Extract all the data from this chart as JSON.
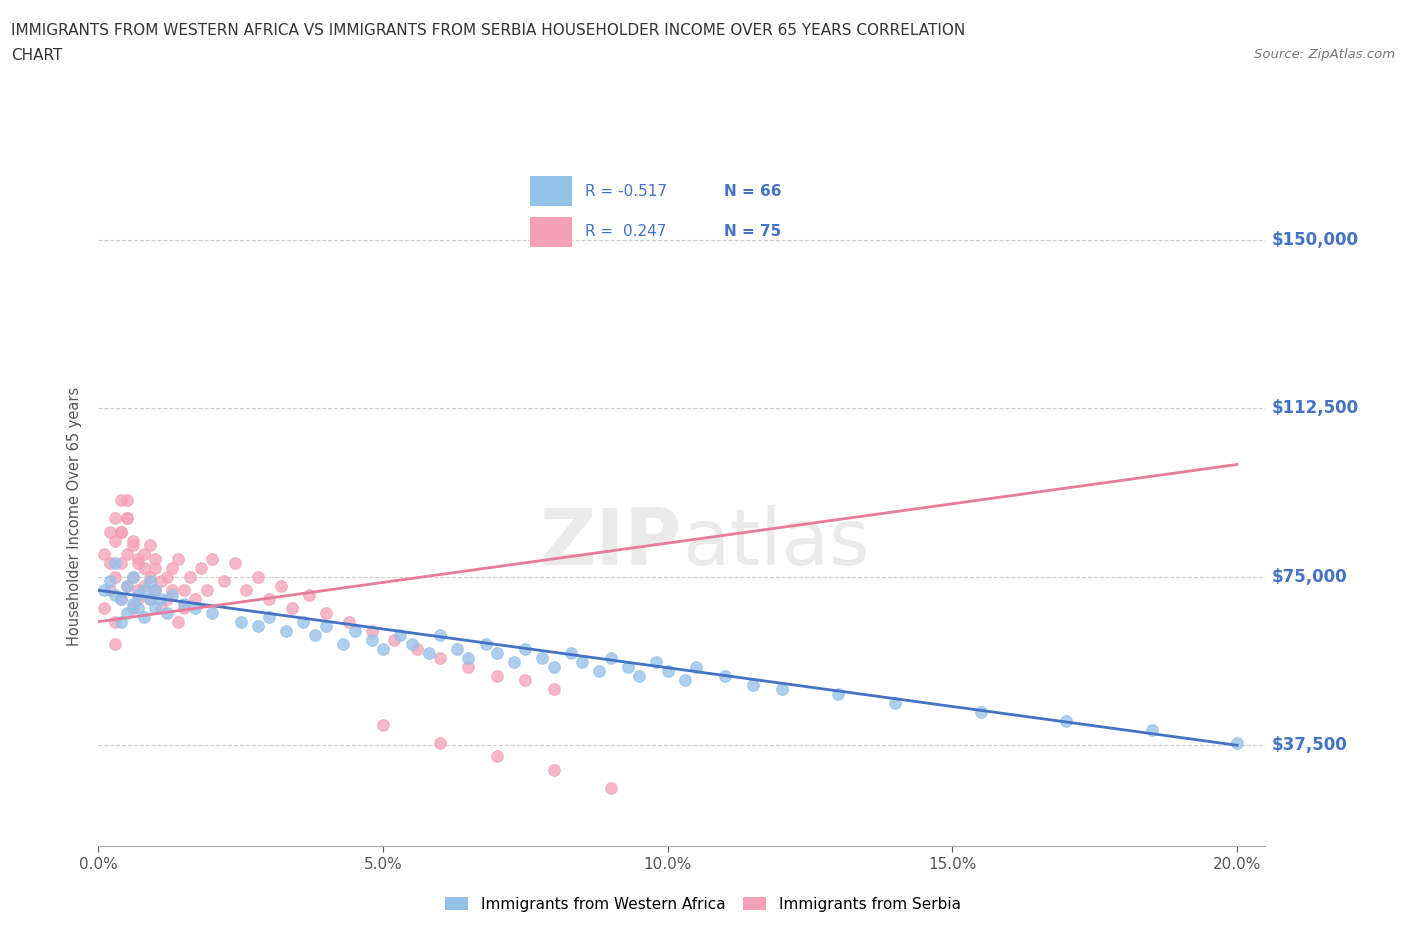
{
  "title_line1": "IMMIGRANTS FROM WESTERN AFRICA VS IMMIGRANTS FROM SERBIA HOUSEHOLDER INCOME OVER 65 YEARS CORRELATION",
  "title_line2": "CHART",
  "source": "Source: ZipAtlas.com",
  "ylabel": "Householder Income Over 65 years",
  "xlim": [
    0.0,
    0.205
  ],
  "ylim": [
    15000,
    162000
  ],
  "yticks": [
    37500,
    75000,
    112500,
    150000
  ],
  "ytick_labels": [
    "$37,500",
    "$75,000",
    "$112,500",
    "$150,000"
  ],
  "xticks": [
    0.0,
    0.05,
    0.1,
    0.15,
    0.2
  ],
  "xtick_labels": [
    "0.0%",
    "5.0%",
    "10.0%",
    "15.0%",
    "20.0%"
  ],
  "color_blue": "#92C0E8",
  "color_pink": "#F4A0B8",
  "color_blue_text": "#4472C4",
  "color_pink_line": "#E87A9A",
  "label1": "Immigrants from Western Africa",
  "label2": "Immigrants from Serbia",
  "watermark": "ZIPatlas",
  "background_color": "#FFFFFF",
  "grid_color": "#CCCCCC",
  "wa_trend_x": [
    0.0,
    0.2
  ],
  "wa_trend_y": [
    72000,
    37500
  ],
  "ser_trend_x": [
    0.0,
    0.2
  ],
  "ser_trend_y": [
    65000,
    100000
  ],
  "western_africa_x": [
    0.001,
    0.002,
    0.003,
    0.003,
    0.004,
    0.004,
    0.005,
    0.005,
    0.006,
    0.006,
    0.007,
    0.007,
    0.008,
    0.008,
    0.009,
    0.009,
    0.01,
    0.01,
    0.011,
    0.012,
    0.013,
    0.015,
    0.017,
    0.02,
    0.025,
    0.028,
    0.03,
    0.033,
    0.036,
    0.038,
    0.04,
    0.043,
    0.045,
    0.048,
    0.05,
    0.053,
    0.055,
    0.058,
    0.06,
    0.063,
    0.065,
    0.068,
    0.07,
    0.073,
    0.075,
    0.078,
    0.08,
    0.083,
    0.085,
    0.088,
    0.09,
    0.093,
    0.095,
    0.098,
    0.1,
    0.103,
    0.105,
    0.11,
    0.115,
    0.12,
    0.13,
    0.14,
    0.155,
    0.17,
    0.185,
    0.2
  ],
  "western_africa_y": [
    72000,
    74000,
    71000,
    78000,
    70000,
    65000,
    73000,
    67000,
    69000,
    75000,
    71000,
    68000,
    72000,
    66000,
    70000,
    74000,
    68000,
    72000,
    70000,
    67000,
    71000,
    69000,
    68000,
    67000,
    65000,
    64000,
    66000,
    63000,
    65000,
    62000,
    64000,
    60000,
    63000,
    61000,
    59000,
    62000,
    60000,
    58000,
    62000,
    59000,
    57000,
    60000,
    58000,
    56000,
    59000,
    57000,
    55000,
    58000,
    56000,
    54000,
    57000,
    55000,
    53000,
    56000,
    54000,
    52000,
    55000,
    53000,
    51000,
    50000,
    49000,
    47000,
    45000,
    43000,
    41000,
    38000
  ],
  "serbia_x": [
    0.001,
    0.001,
    0.002,
    0.002,
    0.002,
    0.003,
    0.003,
    0.003,
    0.003,
    0.004,
    0.004,
    0.004,
    0.005,
    0.005,
    0.005,
    0.005,
    0.006,
    0.006,
    0.006,
    0.007,
    0.007,
    0.007,
    0.008,
    0.008,
    0.008,
    0.009,
    0.009,
    0.009,
    0.01,
    0.01,
    0.01,
    0.011,
    0.011,
    0.012,
    0.012,
    0.013,
    0.013,
    0.014,
    0.014,
    0.015,
    0.015,
    0.016,
    0.017,
    0.018,
    0.019,
    0.02,
    0.022,
    0.024,
    0.026,
    0.028,
    0.03,
    0.032,
    0.034,
    0.037,
    0.04,
    0.044,
    0.048,
    0.052,
    0.056,
    0.06,
    0.065,
    0.07,
    0.075,
    0.08,
    0.003,
    0.004,
    0.004,
    0.005,
    0.006,
    0.007,
    0.05,
    0.06,
    0.07,
    0.08,
    0.09
  ],
  "serbia_y": [
    68000,
    80000,
    72000,
    85000,
    78000,
    88000,
    75000,
    83000,
    65000,
    70000,
    78000,
    85000,
    73000,
    80000,
    88000,
    92000,
    75000,
    83000,
    68000,
    72000,
    79000,
    70000,
    77000,
    73000,
    80000,
    75000,
    82000,
    70000,
    77000,
    72000,
    79000,
    74000,
    68000,
    75000,
    70000,
    77000,
    72000,
    79000,
    65000,
    72000,
    68000,
    75000,
    70000,
    77000,
    72000,
    79000,
    74000,
    78000,
    72000,
    75000,
    70000,
    73000,
    68000,
    71000,
    67000,
    65000,
    63000,
    61000,
    59000,
    57000,
    55000,
    53000,
    52000,
    50000,
    60000,
    92000,
    85000,
    88000,
    82000,
    78000,
    42000,
    38000,
    35000,
    32000,
    28000
  ]
}
